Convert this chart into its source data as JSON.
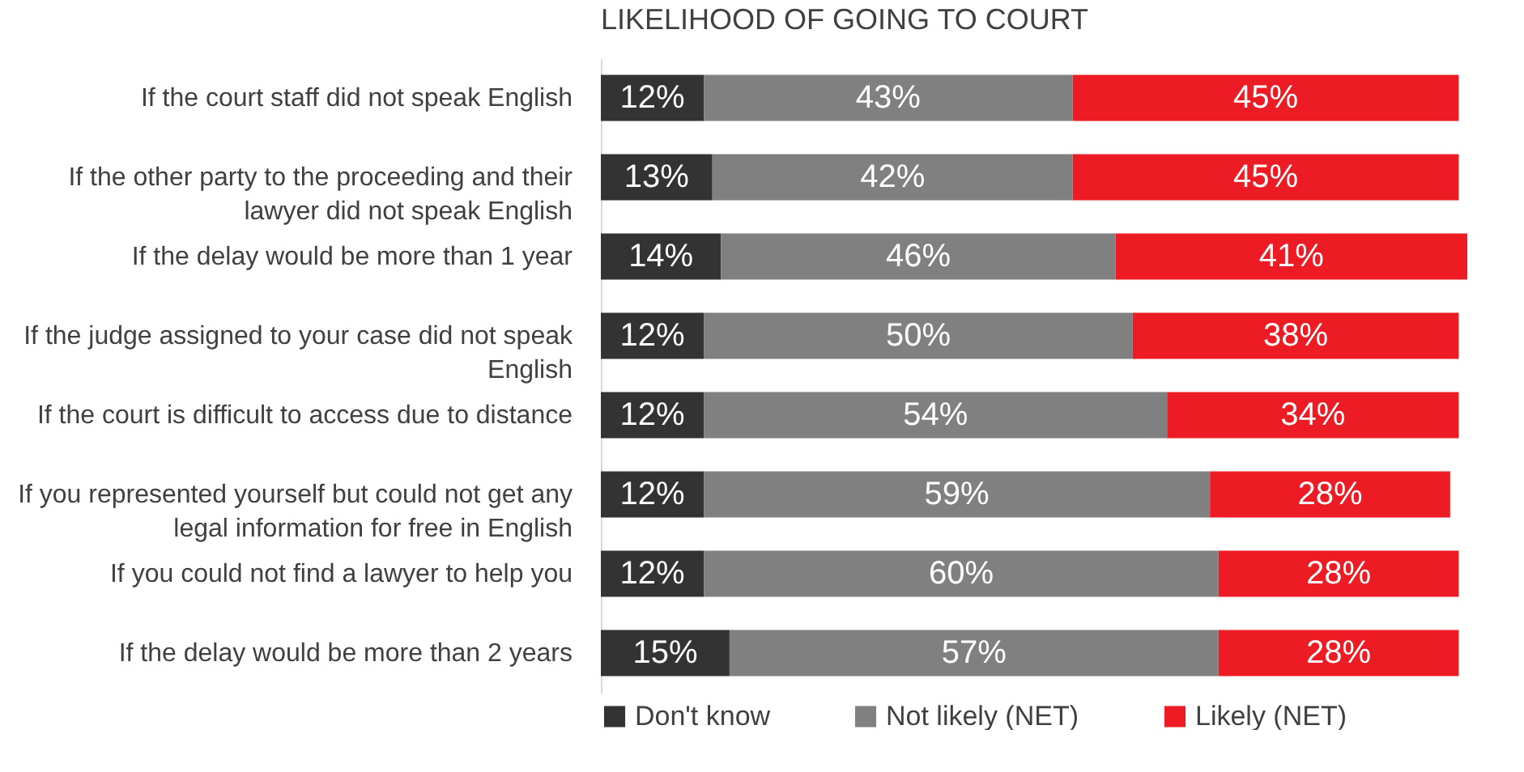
{
  "chart_data": {
    "type": "bar",
    "orientation": "horizontal",
    "stacked": true,
    "title": "LIKELIHOOD OF GOING TO COURT",
    "legend": "bottom",
    "tick_labels": "y",
    "grid": false,
    "categories": [
      "If the court staff did not speak English",
      "If the other party to the proceeding and their lawyer did not speak English",
      "If the delay would be more than 1 year",
      "If the judge assigned to your case did not speak English",
      "If the court is difficult to access due to distance",
      "If you represented yourself but could not get any legal information for free in English",
      "If you could not find a lawyer to help you",
      "If the delay would be more than 2 years"
    ],
    "series": [
      {
        "name": "Don't know",
        "color": "#333333",
        "values": [
          12,
          13,
          14,
          12,
          12,
          12,
          12,
          15
        ],
        "value_labels": [
          "12%",
          "13%",
          "14%",
          "12%",
          "12%",
          "12%",
          "12%",
          "15%"
        ]
      },
      {
        "name": "Not likely (NET)",
        "color": "#808080",
        "values": [
          43,
          42,
          46,
          50,
          54,
          59,
          60,
          57
        ],
        "value_labels": [
          "43%",
          "42%",
          "46%",
          "50%",
          "54%",
          "59%",
          "60%",
          "57%"
        ]
      },
      {
        "name": "Likely (NET)",
        "color": "#ed1c24",
        "values": [
          45,
          45,
          41,
          38,
          34,
          28,
          28,
          28
        ],
        "value_labels": [
          "45%",
          "45%",
          "41%",
          "38%",
          "34%",
          "28%",
          "28%",
          "28%"
        ]
      }
    ]
  }
}
